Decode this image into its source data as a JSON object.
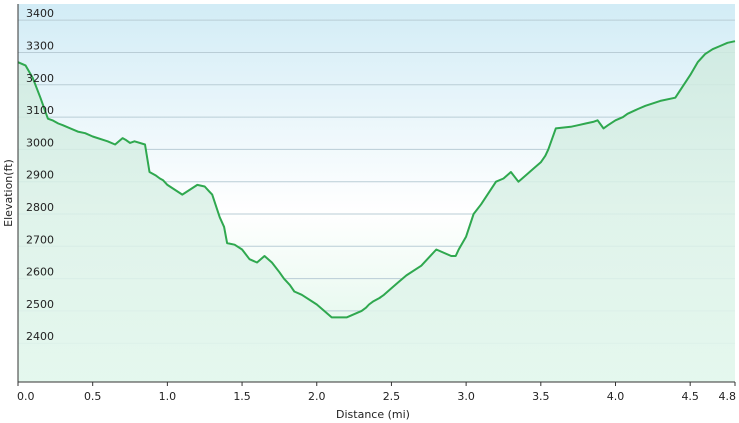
{
  "chart_data": {
    "type": "area",
    "title": "",
    "xlabel": "Distance  (mi)",
    "ylabel": "Elevation(ft)",
    "xlim": [
      0,
      4.8
    ],
    "ylim": [
      2280,
      3450
    ],
    "x_ticks": [
      0.0,
      0.5,
      1.0,
      1.5,
      2.0,
      2.5,
      3.0,
      3.5,
      4.0,
      4.5,
      4.8
    ],
    "x_tick_labels": [
      "0.0",
      "0.5",
      "1.0",
      "1.5",
      "2.0",
      "2.5",
      "3.0",
      "3.5",
      "4.0",
      "4.5",
      "4.8"
    ],
    "y_ticks": [
      2400,
      2500,
      2600,
      2700,
      2800,
      2900,
      3000,
      3100,
      3200,
      3300,
      3400
    ],
    "y_tick_labels": [
      "2400",
      "2500",
      "2600",
      "2700",
      "2800",
      "2900",
      "3000",
      "3100",
      "3200",
      "3300",
      "3400"
    ],
    "grid": true,
    "colors": {
      "line": "#2fa84f",
      "fill_top": "#d2ecf6",
      "fill_bottom": "#daf5e6",
      "background": "#ffffff",
      "grid": "#b9cdd6",
      "axis": "#333333"
    },
    "series": [
      {
        "x": [
          0.0,
          0.05,
          0.1,
          0.15,
          0.2,
          0.23,
          0.27,
          0.3,
          0.4,
          0.45,
          0.5,
          0.6,
          0.65,
          0.7,
          0.72,
          0.75,
          0.78,
          0.85,
          0.88,
          0.92,
          0.95,
          0.97,
          1.0,
          1.1,
          1.2,
          1.25,
          1.28,
          1.3,
          1.35,
          1.38,
          1.4,
          1.45,
          1.5,
          1.55,
          1.6,
          1.65,
          1.7,
          1.75,
          1.78,
          1.8,
          1.82,
          1.85,
          1.9,
          2.0,
          2.05,
          2.1,
          2.2,
          2.25,
          2.3,
          2.33,
          2.35,
          2.38,
          2.42,
          2.45,
          2.5,
          2.55,
          2.6,
          2.7,
          2.8,
          2.9,
          2.93,
          2.95,
          3.0,
          3.05,
          3.1,
          3.2,
          3.25,
          3.3,
          3.35,
          3.4,
          3.45,
          3.5,
          3.53,
          3.55,
          3.6,
          3.7,
          3.75,
          3.8,
          3.85,
          3.88,
          3.92,
          3.95,
          4.0,
          4.05,
          4.08,
          4.15,
          4.2,
          4.3,
          4.4,
          4.5,
          4.55,
          4.6,
          4.65,
          4.7,
          4.75,
          4.8
        ],
        "y": [
          3270,
          3260,
          3220,
          3160,
          3095,
          3090,
          3080,
          3075,
          3055,
          3050,
          3040,
          3025,
          3015,
          3035,
          3030,
          3020,
          3025,
          3015,
          2930,
          2920,
          2910,
          2905,
          2890,
          2860,
          2890,
          2885,
          2870,
          2860,
          2790,
          2760,
          2710,
          2705,
          2690,
          2660,
          2650,
          2670,
          2650,
          2620,
          2600,
          2590,
          2580,
          2560,
          2550,
          2520,
          2500,
          2480,
          2480,
          2490,
          2500,
          2510,
          2520,
          2530,
          2540,
          2550,
          2570,
          2590,
          2610,
          2640,
          2690,
          2670,
          2670,
          2690,
          2730,
          2800,
          2830,
          2900,
          2910,
          2930,
          2900,
          2920,
          2940,
          2960,
          2980,
          3000,
          3065,
          3070,
          3075,
          3080,
          3085,
          3090,
          3065,
          3075,
          3090,
          3100,
          3110,
          3125,
          3135,
          3150,
          3160,
          3230,
          3270,
          3295,
          3310,
          3320,
          3330,
          3335
        ]
      }
    ]
  }
}
